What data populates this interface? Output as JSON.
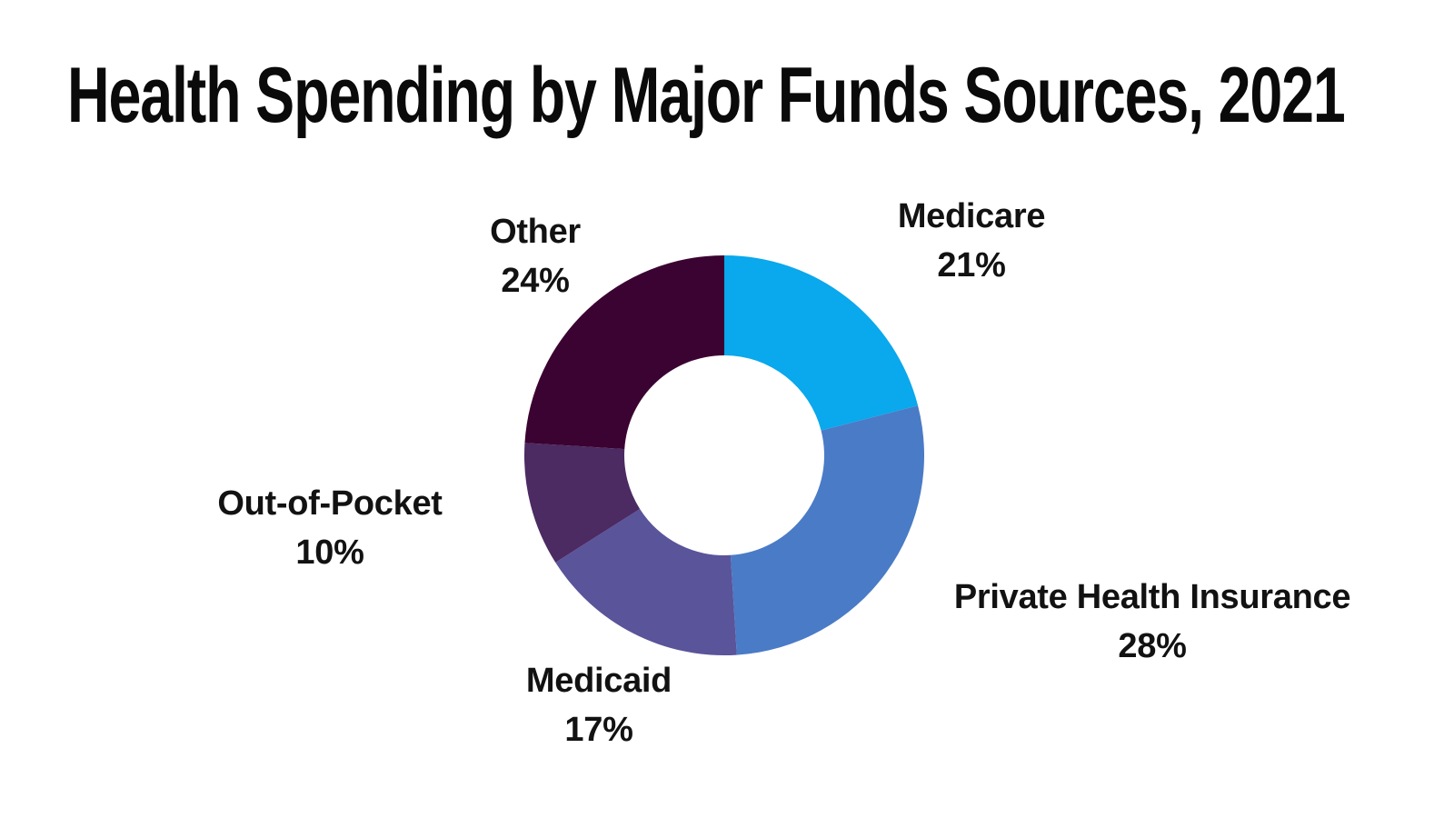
{
  "title": "Health Spending by Major Funds Sources, 2021",
  "chart_data": {
    "type": "pie",
    "subtype": "donut",
    "title": "Health Spending by Major Funds Sources, 2021",
    "categories": [
      "Medicare",
      "Private Health Insurance",
      "Medicaid",
      "Out-of-Pocket",
      "Other"
    ],
    "values": [
      21,
      28,
      17,
      10,
      24
    ],
    "unit": "percent",
    "start_angle_deg": 0,
    "direction": "clockwise",
    "donut_hole_ratio": 0.5,
    "legend_position": "none",
    "background_color": "#ffffff",
    "title_color": "#0a0a0a",
    "label_text_color": "#121212",
    "slice_colors": [
      "#0AA8EC",
      "#4A7BC6",
      "#5A549A",
      "#4C2A62",
      "#3B0331"
    ],
    "display_labels": [
      {
        "name": "Medicare",
        "pct": "21%"
      },
      {
        "name": "Private Health Insurance",
        "pct": "28%"
      },
      {
        "name": "Medicaid",
        "pct": "17%"
      },
      {
        "name": "Out-of-Pocket",
        "pct": "10%"
      },
      {
        "name": "Other",
        "pct": "24%"
      }
    ]
  }
}
